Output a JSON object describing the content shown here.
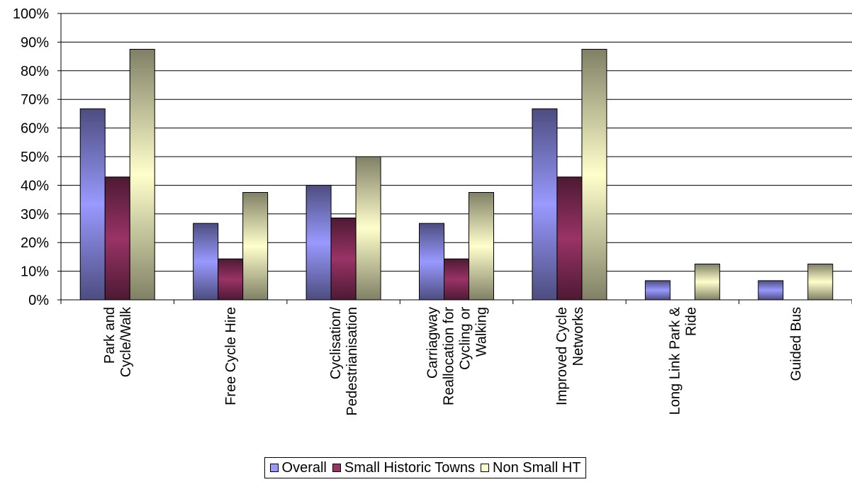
{
  "chart_data": {
    "type": "bar",
    "categories": [
      [
        "Park and",
        "Cycle/Walk"
      ],
      [
        "Free Cycle Hire"
      ],
      [
        "Cyclisation/",
        "Pedestrianisation"
      ],
      [
        "Carriagway",
        "Reallocation for",
        "Cycling or",
        "Walking"
      ],
      [
        "Improved Cycle",
        "Networks"
      ],
      [
        "Long Link Park &",
        "Ride"
      ],
      [
        "Guided Bus"
      ]
    ],
    "series": [
      {
        "name": "Overall",
        "values": [
          66.7,
          26.7,
          40.0,
          26.7,
          66.7,
          6.7,
          6.7
        ],
        "color": "#9999ff"
      },
      {
        "name": "Small Historic Towns",
        "values": [
          42.9,
          14.3,
          28.6,
          14.3,
          42.9,
          0,
          0
        ],
        "color": "#993366"
      },
      {
        "name": "Non Small HT",
        "values": [
          87.5,
          37.5,
          50.0,
          37.5,
          87.5,
          12.5,
          12.5
        ],
        "color": "#ffffcc"
      }
    ],
    "yticks": [
      "0%",
      "10%",
      "20%",
      "30%",
      "40%",
      "50%",
      "60%",
      "70%",
      "80%",
      "90%",
      "100%"
    ],
    "ylim": [
      0,
      100
    ],
    "grid": true,
    "legend": "bottom"
  }
}
